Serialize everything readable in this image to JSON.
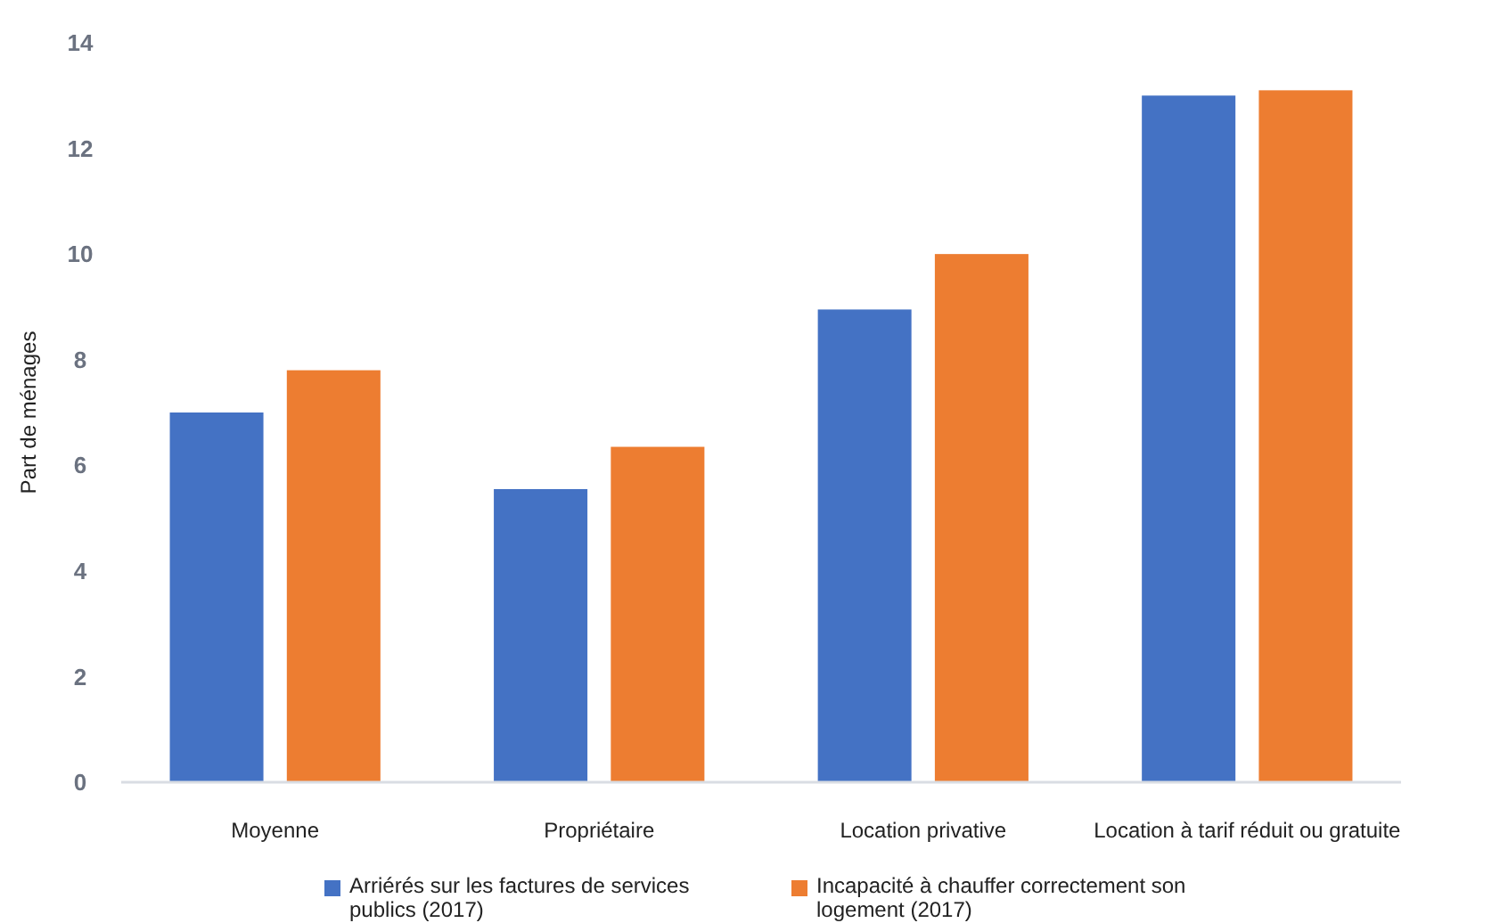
{
  "chart_data": {
    "type": "bar",
    "ylabel": "Part de ménages",
    "categories": [
      "Moyenne",
      "Propriétaire",
      "Location privative",
      "Location à tarif réduit ou gratuite"
    ],
    "series": [
      {
        "name": "Arriérés sur les factures de services publics (2017)",
        "color": "#4472c4",
        "values": [
          7.0,
          5.55,
          8.95,
          13.0
        ]
      },
      {
        "name": "Incapacité à chauffer correctement son logement (2017)",
        "color": "#ed7d31",
        "values": [
          7.8,
          6.35,
          10.0,
          13.1
        ]
      }
    ],
    "ylim": [
      0,
      14
    ],
    "yticks": [
      0,
      2,
      4,
      6,
      8,
      10,
      12,
      14
    ],
    "grid": false,
    "legend": "bottom"
  }
}
